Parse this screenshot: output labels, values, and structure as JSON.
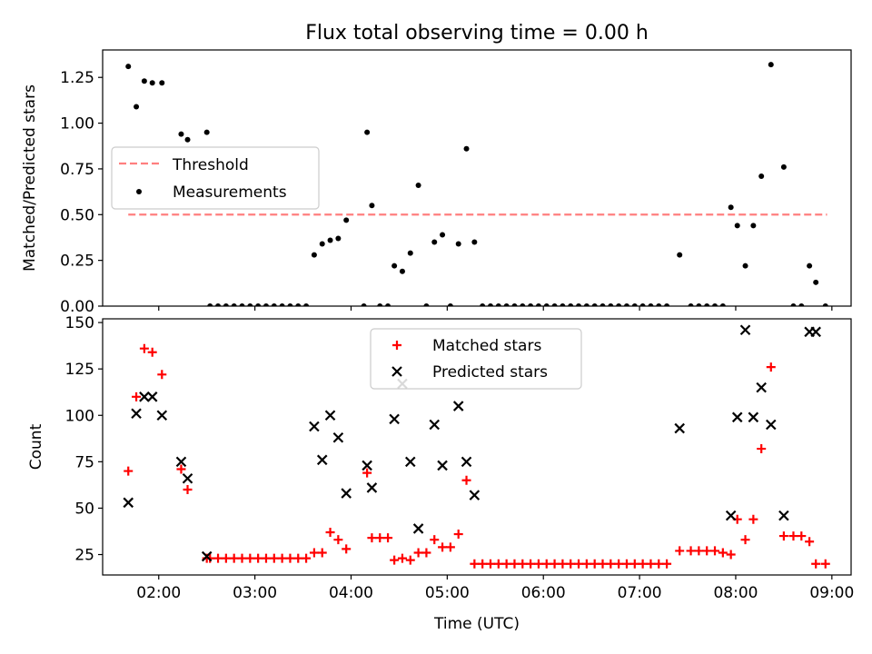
{
  "figure": {
    "title": "Flux total observing time = 0.00 h"
  },
  "chart_data": [
    {
      "type": "scatter",
      "title": "Flux total observing time = 0.00 h",
      "xlabel": "",
      "ylabel": "Matched/Predicted stars",
      "xlim": [
        "01:25",
        "09:12"
      ],
      "ylim": [
        0,
        1.4
      ],
      "yticks": [
        0.0,
        0.25,
        0.5,
        0.75,
        1.0,
        1.25
      ],
      "ytick_labels": [
        "0.00",
        "0.25",
        "0.50",
        "0.75",
        "1.00",
        "1.25"
      ],
      "legend": {
        "placement": "center-left",
        "entries": [
          "Threshold",
          "Measurements"
        ]
      },
      "threshold": {
        "name": "Threshold",
        "value": 0.5,
        "x_range": [
          "01:41",
          "08:57"
        ],
        "color": "#ff7f7f",
        "style": "dashed"
      },
      "series": [
        {
          "name": "Measurements",
          "color": "#000000",
          "marker": "dot",
          "points": [
            [
              "01:41",
              1.31
            ],
            [
              "01:46",
              1.09
            ],
            [
              "01:51",
              1.23
            ],
            [
              "01:56",
              1.22
            ],
            [
              "02:02",
              1.22
            ],
            [
              "02:14",
              0.94
            ],
            [
              "02:18",
              0.91
            ],
            [
              "02:30",
              0.95
            ],
            [
              "02:32",
              0.0
            ],
            [
              "02:37",
              0.0
            ],
            [
              "02:42",
              0.0
            ],
            [
              "02:47",
              0.0
            ],
            [
              "02:52",
              0.0
            ],
            [
              "02:57",
              0.0
            ],
            [
              "03:02",
              0.0
            ],
            [
              "03:07",
              0.0
            ],
            [
              "03:12",
              0.0
            ],
            [
              "03:17",
              0.0
            ],
            [
              "03:22",
              0.0
            ],
            [
              "03:27",
              0.0
            ],
            [
              "03:32",
              0.0
            ],
            [
              "03:37",
              0.28
            ],
            [
              "03:42",
              0.34
            ],
            [
              "03:47",
              0.36
            ],
            [
              "03:52",
              0.37
            ],
            [
              "03:57",
              0.47
            ],
            [
              "04:08",
              0.0
            ],
            [
              "04:10",
              0.95
            ],
            [
              "04:13",
              0.55
            ],
            [
              "04:18",
              0.0
            ],
            [
              "04:23",
              0.0
            ],
            [
              "04:27",
              0.22
            ],
            [
              "04:32",
              0.19
            ],
            [
              "04:37",
              0.29
            ],
            [
              "04:42",
              0.66
            ],
            [
              "04:47",
              0.0
            ],
            [
              "04:52",
              0.35
            ],
            [
              "04:57",
              0.39
            ],
            [
              "05:02",
              0.0
            ],
            [
              "05:07",
              0.34
            ],
            [
              "05:12",
              0.86
            ],
            [
              "05:17",
              0.35
            ],
            [
              "05:22",
              0.0
            ],
            [
              "05:27",
              0.0
            ],
            [
              "05:32",
              0.0
            ],
            [
              "05:37",
              0.0
            ],
            [
              "05:42",
              0.0
            ],
            [
              "05:47",
              0.0
            ],
            [
              "05:52",
              0.0
            ],
            [
              "05:57",
              0.0
            ],
            [
              "06:02",
              0.0
            ],
            [
              "06:07",
              0.0
            ],
            [
              "06:12",
              0.0
            ],
            [
              "06:17",
              0.0
            ],
            [
              "06:22",
              0.0
            ],
            [
              "06:27",
              0.0
            ],
            [
              "06:32",
              0.0
            ],
            [
              "06:37",
              0.0
            ],
            [
              "06:42",
              0.0
            ],
            [
              "06:47",
              0.0
            ],
            [
              "06:52",
              0.0
            ],
            [
              "06:57",
              0.0
            ],
            [
              "07:02",
              0.0
            ],
            [
              "07:07",
              0.0
            ],
            [
              "07:12",
              0.0
            ],
            [
              "07:17",
              0.0
            ],
            [
              "07:25",
              0.28
            ],
            [
              "07:32",
              0.0
            ],
            [
              "07:37",
              0.0
            ],
            [
              "07:42",
              0.0
            ],
            [
              "07:47",
              0.0
            ],
            [
              "07:52",
              0.0
            ],
            [
              "07:57",
              0.54
            ],
            [
              "08:01",
              0.44
            ],
            [
              "08:06",
              0.22
            ],
            [
              "08:11",
              0.44
            ],
            [
              "08:16",
              0.71
            ],
            [
              "08:22",
              1.32
            ],
            [
              "08:30",
              0.76
            ],
            [
              "08:36",
              0.0
            ],
            [
              "08:41",
              0.0
            ],
            [
              "08:46",
              0.22
            ],
            [
              "08:50",
              0.13
            ],
            [
              "08:56",
              0.0
            ]
          ]
        }
      ]
    },
    {
      "type": "scatter",
      "title": "",
      "xlabel": "Time (UTC)",
      "ylabel": "Count",
      "xlim": [
        "01:25",
        "09:12"
      ],
      "ylim": [
        14,
        152
      ],
      "yticks": [
        25,
        50,
        75,
        100,
        125,
        150
      ],
      "ytick_labels": [
        "25",
        "50",
        "75",
        "100",
        "125",
        "150"
      ],
      "xticks": [
        "02:00",
        "03:00",
        "04:00",
        "05:00",
        "06:00",
        "07:00",
        "08:00",
        "09:00"
      ],
      "legend": {
        "placement": "upper-center",
        "entries": [
          "Matched stars",
          "Predicted stars"
        ]
      },
      "series": [
        {
          "name": "Matched stars",
          "color": "#ff0000",
          "marker": "plus",
          "points": [
            [
              "01:41",
              70
            ],
            [
              "01:46",
              110
            ],
            [
              "01:51",
              136
            ],
            [
              "01:56",
              134
            ],
            [
              "02:02",
              122
            ],
            [
              "02:14",
              71
            ],
            [
              "02:18",
              60
            ],
            [
              "02:30",
              23
            ],
            [
              "02:32",
              23
            ],
            [
              "02:37",
              23
            ],
            [
              "02:42",
              23
            ],
            [
              "02:47",
              23
            ],
            [
              "02:52",
              23
            ],
            [
              "02:57",
              23
            ],
            [
              "03:02",
              23
            ],
            [
              "03:07",
              23
            ],
            [
              "03:12",
              23
            ],
            [
              "03:17",
              23
            ],
            [
              "03:22",
              23
            ],
            [
              "03:27",
              23
            ],
            [
              "03:32",
              23
            ],
            [
              "03:37",
              26
            ],
            [
              "03:42",
              26
            ],
            [
              "03:47",
              37
            ],
            [
              "03:52",
              33
            ],
            [
              "03:57",
              28
            ],
            [
              "04:10",
              69
            ],
            [
              "04:13",
              34
            ],
            [
              "04:18",
              34
            ],
            [
              "04:23",
              34
            ],
            [
              "04:27",
              22
            ],
            [
              "04:32",
              23
            ],
            [
              "04:37",
              22
            ],
            [
              "04:42",
              26
            ],
            [
              "04:47",
              26
            ],
            [
              "04:52",
              33
            ],
            [
              "04:57",
              29
            ],
            [
              "05:02",
              29
            ],
            [
              "05:07",
              36
            ],
            [
              "05:12",
              65
            ],
            [
              "05:17",
              20
            ],
            [
              "05:22",
              20
            ],
            [
              "05:27",
              20
            ],
            [
              "05:32",
              20
            ],
            [
              "05:37",
              20
            ],
            [
              "05:42",
              20
            ],
            [
              "05:47",
              20
            ],
            [
              "05:52",
              20
            ],
            [
              "05:57",
              20
            ],
            [
              "06:02",
              20
            ],
            [
              "06:07",
              20
            ],
            [
              "06:12",
              20
            ],
            [
              "06:17",
              20
            ],
            [
              "06:22",
              20
            ],
            [
              "06:27",
              20
            ],
            [
              "06:32",
              20
            ],
            [
              "06:37",
              20
            ],
            [
              "06:42",
              20
            ],
            [
              "06:47",
              20
            ],
            [
              "06:52",
              20
            ],
            [
              "06:57",
              20
            ],
            [
              "07:02",
              20
            ],
            [
              "07:07",
              20
            ],
            [
              "07:12",
              20
            ],
            [
              "07:17",
              20
            ],
            [
              "07:25",
              27
            ],
            [
              "07:32",
              27
            ],
            [
              "07:37",
              27
            ],
            [
              "07:42",
              27
            ],
            [
              "07:47",
              27
            ],
            [
              "07:52",
              26
            ],
            [
              "07:57",
              25
            ],
            [
              "08:01",
              44
            ],
            [
              "08:06",
              33
            ],
            [
              "08:11",
              44
            ],
            [
              "08:16",
              82
            ],
            [
              "08:22",
              126
            ],
            [
              "08:30",
              35
            ],
            [
              "08:36",
              35
            ],
            [
              "08:41",
              35
            ],
            [
              "08:46",
              32
            ],
            [
              "08:50",
              20
            ],
            [
              "08:56",
              20
            ]
          ]
        },
        {
          "name": "Predicted stars",
          "color": "#000000",
          "marker": "x",
          "points": [
            [
              "01:41",
              53
            ],
            [
              "01:46",
              101
            ],
            [
              "01:51",
              110
            ],
            [
              "01:56",
              110
            ],
            [
              "02:02",
              100
            ],
            [
              "02:14",
              75
            ],
            [
              "02:18",
              66
            ],
            [
              "02:30",
              24
            ],
            [
              "03:37",
              94
            ],
            [
              "03:42",
              76
            ],
            [
              "03:47",
              100
            ],
            [
              "03:52",
              88
            ],
            [
              "03:57",
              58
            ],
            [
              "04:10",
              73
            ],
            [
              "04:13",
              61
            ],
            [
              "04:27",
              98
            ],
            [
              "04:32",
              117
            ],
            [
              "04:37",
              75
            ],
            [
              "04:42",
              39
            ],
            [
              "04:52",
              95
            ],
            [
              "04:57",
              73
            ],
            [
              "05:07",
              105
            ],
            [
              "05:12",
              75
            ],
            [
              "05:17",
              57
            ],
            [
              "07:25",
              93
            ],
            [
              "07:57",
              46
            ],
            [
              "08:01",
              99
            ],
            [
              "08:06",
              146
            ],
            [
              "08:11",
              99
            ],
            [
              "08:16",
              115
            ],
            [
              "08:22",
              95
            ],
            [
              "08:30",
              46
            ],
            [
              "08:46",
              145
            ],
            [
              "08:50",
              145
            ]
          ]
        }
      ]
    }
  ]
}
